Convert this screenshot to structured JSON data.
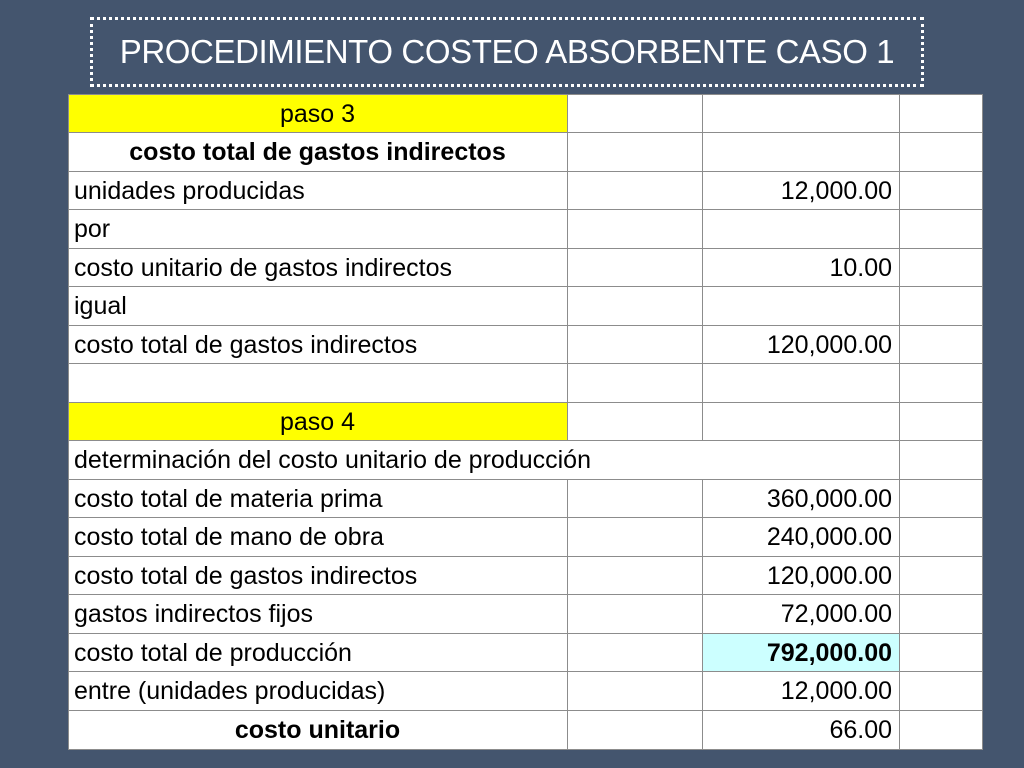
{
  "title": "PROCEDIMIENTO COSTEO ABSORBENTE CASO 1",
  "colors": {
    "background": "#44556e",
    "paso_highlight": "#ffff00",
    "total_highlight": "#ccffff"
  },
  "paso3": {
    "heading": "paso 3",
    "subheading": "costo total de gastos indirectos",
    "rows": [
      {
        "label": "unidades producidas",
        "value": "12,000.00"
      },
      {
        "label": "por",
        "value": ""
      },
      {
        "label": "costo unitario de gastos indirectos",
        "value": "10.00"
      },
      {
        "label": "igual",
        "value": ""
      },
      {
        "label": "costo total de gastos indirectos",
        "value": "120,000.00"
      }
    ]
  },
  "paso4": {
    "heading": "paso 4",
    "subheading": "determinación del costo unitario de producción",
    "rows": [
      {
        "label": "costo total de materia prima",
        "value": "360,000.00"
      },
      {
        "label": "costo total de mano de obra",
        "value": "240,000.00"
      },
      {
        "label": "costo total de gastos indirectos",
        "value": "120,000.00"
      },
      {
        "label": "gastos indirectos fijos",
        "value": "72,000.00"
      },
      {
        "label": "costo total de producción",
        "value": "792,000.00"
      },
      {
        "label": "entre (unidades producidas)",
        "value": "12,000.00"
      },
      {
        "label": "costo unitario",
        "value": "66.00"
      }
    ]
  }
}
